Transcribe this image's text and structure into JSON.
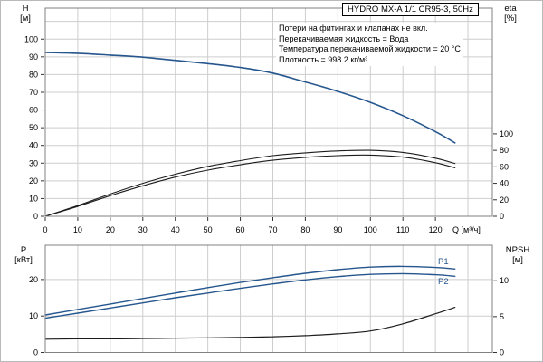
{
  "header": {
    "title_box": "HYDRO MX-A 1/1 CR95-3, 50Hz"
  },
  "info_block": {
    "lines": [
      "Потери на фитингах и клапанах не вкл.",
      "Перекачиваемая жидкость = Вода",
      "Температура перекачиваемой жидкости = 20 °C",
      "Плотность = 998.2 кг/м³"
    ]
  },
  "axis_titles": {
    "head": {
      "name": "H",
      "unit": "[м]"
    },
    "eta": {
      "name": "eta",
      "unit": "[%]"
    },
    "power": {
      "name": "P",
      "unit": "[кВт]"
    },
    "npsh": {
      "name": "NPSH",
      "unit": "[м]"
    }
  },
  "curve_labels": {
    "p1": "P1",
    "p2": "P2"
  },
  "colors": {
    "curve_blue": "#26568e",
    "curve_black": "#1c1c1c",
    "grid": "#cdcdcd",
    "plot_border": "#808080",
    "tick": "#333333",
    "text": "#000000"
  },
  "chart_data": [
    {
      "type": "line",
      "title": "HYDRO MX-A 1/1 CR95-3, 50Hz",
      "x": {
        "label": "Q [м³/ч]",
        "min": 0,
        "max": 137.5,
        "grid_step": 10,
        "tick_labels": [
          0,
          10,
          20,
          30,
          40,
          50,
          60,
          70,
          80,
          90,
          100,
          110,
          120
        ]
      },
      "y_left": {
        "label": "H [м]",
        "min": 0,
        "max": 117.5,
        "grid_step": 10,
        "tick_labels": [
          0,
          10,
          20,
          30,
          40,
          50,
          60,
          70,
          80,
          90,
          100
        ]
      },
      "y_right": {
        "label": "eta [%]",
        "min": 0,
        "max": 252.5,
        "grid_step": 0,
        "tick_labels": [
          0,
          20,
          40,
          60,
          80,
          100
        ]
      },
      "legend": "none",
      "series": [
        {
          "name": "H",
          "axis": "left",
          "color_key": "curve_blue",
          "width": 1.6,
          "points": [
            [
              0,
              92.5
            ],
            [
              10,
              92
            ],
            [
              20,
              91
            ],
            [
              30,
              89.8
            ],
            [
              40,
              88
            ],
            [
              50,
              86.2
            ],
            [
              60,
              84
            ],
            [
              70,
              80.8
            ],
            [
              80,
              75.8
            ],
            [
              90,
              70.5
            ],
            [
              100,
              64.3
            ],
            [
              110,
              56.8
            ],
            [
              120,
              47.8
            ],
            [
              126,
              41.5
            ]
          ]
        },
        {
          "name": "eta-pump",
          "axis": "right",
          "color_key": "curve_black",
          "width": 1.1,
          "points": [
            [
              0,
              0
            ],
            [
              10,
              13
            ],
            [
              20,
              27
            ],
            [
              30,
              40
            ],
            [
              40,
              51
            ],
            [
              50,
              60.5
            ],
            [
              60,
              67.5
            ],
            [
              70,
              73.5
            ],
            [
              80,
              77
            ],
            [
              90,
              79.3
            ],
            [
              100,
              80
            ],
            [
              110,
              77.5
            ],
            [
              120,
              70.5
            ],
            [
              126,
              64
            ]
          ]
        },
        {
          "name": "eta-unit",
          "axis": "right",
          "color_key": "curve_black",
          "width": 1.1,
          "points": [
            [
              0,
              0
            ],
            [
              10,
              12
            ],
            [
              20,
              25
            ],
            [
              30,
              37
            ],
            [
              40,
              47.5
            ],
            [
              50,
              56
            ],
            [
              60,
              62.5
            ],
            [
              70,
              68
            ],
            [
              80,
              71.5
            ],
            [
              90,
              73.6
            ],
            [
              100,
              74.2
            ],
            [
              110,
              71.8
            ],
            [
              120,
              65
            ],
            [
              126,
              58.8
            ]
          ]
        }
      ]
    },
    {
      "type": "line",
      "title": "",
      "x": {
        "label": "",
        "min": 0,
        "max": 137.5,
        "grid_step": 10,
        "tick_labels": []
      },
      "y_left": {
        "label": "P [кВт]",
        "min": 0,
        "max": 29.4,
        "grid_step": 10,
        "tick_labels": [
          0,
          10,
          20
        ]
      },
      "y_right": {
        "label": "NPSH [м]",
        "min": 0,
        "max": 14.95,
        "grid_step": 0,
        "tick_labels": [
          0,
          5,
          10
        ]
      },
      "legend": "inline: P1, P2",
      "series": [
        {
          "name": "P1",
          "axis": "left",
          "color_key": "curve_blue",
          "width": 1.4,
          "points": [
            [
              0,
              10.3
            ],
            [
              10,
              11.8
            ],
            [
              20,
              13.3
            ],
            [
              30,
              14.8
            ],
            [
              40,
              16.3
            ],
            [
              50,
              17.8
            ],
            [
              60,
              19.2
            ],
            [
              70,
              20.5
            ],
            [
              80,
              21.7
            ],
            [
              90,
              22.7
            ],
            [
              100,
              23.4
            ],
            [
              110,
              23.6
            ],
            [
              120,
              23.3
            ],
            [
              126,
              22.9
            ]
          ]
        },
        {
          "name": "P2",
          "axis": "left",
          "color_key": "curve_blue",
          "width": 1.4,
          "points": [
            [
              0,
              9.4
            ],
            [
              10,
              10.8
            ],
            [
              20,
              12.2
            ],
            [
              30,
              13.6
            ],
            [
              40,
              15.0
            ],
            [
              50,
              16.3
            ],
            [
              60,
              17.6
            ],
            [
              70,
              18.8
            ],
            [
              80,
              19.9
            ],
            [
              90,
              20.8
            ],
            [
              100,
              21.4
            ],
            [
              110,
              21.6
            ],
            [
              120,
              21.3
            ],
            [
              126,
              20.9
            ]
          ]
        },
        {
          "name": "NPSH",
          "axis": "right",
          "color_key": "curve_black",
          "width": 1.2,
          "points": [
            [
              0,
              1.85
            ],
            [
              10,
              1.9
            ],
            [
              20,
              1.9
            ],
            [
              30,
              1.95
            ],
            [
              40,
              2.0
            ],
            [
              50,
              2.05
            ],
            [
              60,
              2.1
            ],
            [
              70,
              2.2
            ],
            [
              80,
              2.35
            ],
            [
              90,
              2.6
            ],
            [
              100,
              3.0
            ],
            [
              110,
              4.0
            ],
            [
              120,
              5.4
            ],
            [
              126,
              6.3
            ]
          ]
        }
      ]
    }
  ]
}
